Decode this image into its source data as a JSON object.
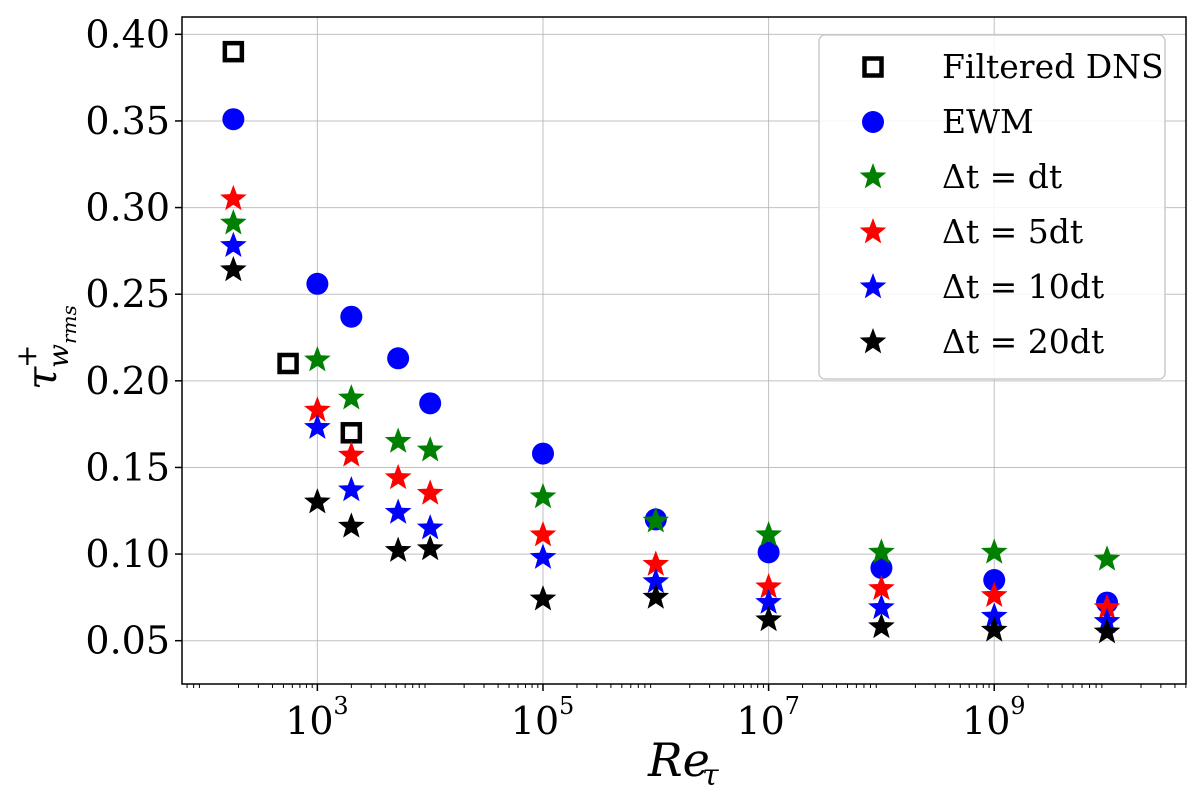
{
  "chart_data": {
    "type": "scatter",
    "title": "",
    "xlabel": "Re_τ",
    "xlabel_main": "Re",
    "xlabel_sub": "τ",
    "ylabel": "τ⁺_{w_rms}",
    "ylabel_main": "τ",
    "ylabel_sup": "+",
    "ylabel_sub": "w",
    "ylabel_subsub": "rms",
    "xscale": "log",
    "xlim_log10": [
      1.8,
      10.7
    ],
    "ylim": [
      0.025,
      0.41
    ],
    "grid": true,
    "legend_position": "top-right",
    "x_ticks": [
      {
        "exp": 3,
        "base": "10",
        "sup": "3"
      },
      {
        "exp": 5,
        "base": "10",
        "sup": "5"
      },
      {
        "exp": 7,
        "base": "10",
        "sup": "7"
      },
      {
        "exp": 9,
        "base": "10",
        "sup": "9"
      }
    ],
    "y_ticks": [
      {
        "value": 0.05,
        "label": "0.05"
      },
      {
        "value": 0.1,
        "label": "0.10"
      },
      {
        "value": 0.15,
        "label": "0.15"
      },
      {
        "value": 0.2,
        "label": "0.20"
      },
      {
        "value": 0.25,
        "label": "0.25"
      },
      {
        "value": 0.3,
        "label": "0.30"
      },
      {
        "value": 0.35,
        "label": "0.35"
      },
      {
        "value": 0.4,
        "label": "0.40"
      }
    ],
    "series": [
      {
        "name": "Filtered DNS",
        "legend_label": "Filtered DNS",
        "marker": "square",
        "color": "#000000",
        "x": [
          180,
          550,
          2000
        ],
        "y": [
          0.39,
          0.21,
          0.17
        ]
      },
      {
        "name": "EWM",
        "legend_label": "EWM",
        "marker": "circle",
        "color": "#0000ff",
        "x": [
          180,
          1000,
          2000,
          5200,
          10000,
          100000,
          1000000,
          10000000,
          100000000,
          1000000000,
          10000000000
        ],
        "y": [
          0.351,
          0.256,
          0.237,
          0.213,
          0.187,
          0.158,
          0.12,
          0.101,
          0.092,
          0.085,
          0.072
        ]
      },
      {
        "name": "Δt = dt",
        "legend_label": "Δt = dt",
        "marker": "star",
        "color": "#008000",
        "x": [
          180,
          1000,
          2000,
          5200,
          10000,
          100000,
          1000000,
          10000000,
          100000000,
          1000000000,
          10000000000
        ],
        "y": [
          0.291,
          0.212,
          0.19,
          0.165,
          0.16,
          0.133,
          0.119,
          0.111,
          0.101,
          0.101,
          0.097
        ]
      },
      {
        "name": "Δt = 5dt",
        "legend_label": "Δt = 5dt",
        "marker": "star",
        "color": "#ff0000",
        "x": [
          180,
          1000,
          2000,
          5200,
          10000,
          100000,
          1000000,
          10000000,
          100000000,
          1000000000,
          10000000000
        ],
        "y": [
          0.305,
          0.183,
          0.157,
          0.144,
          0.135,
          0.111,
          0.094,
          0.081,
          0.08,
          0.076,
          0.069
        ]
      },
      {
        "name": "Δt = 10dt",
        "legend_label": "Δt = 10dt",
        "marker": "star",
        "color": "#0000ff",
        "x": [
          180,
          1000,
          2000,
          5200,
          10000,
          100000,
          1000000,
          10000000,
          100000000,
          1000000000,
          10000000000
        ],
        "y": [
          0.278,
          0.173,
          0.137,
          0.124,
          0.115,
          0.098,
          0.084,
          0.072,
          0.069,
          0.064,
          0.061
        ]
      },
      {
        "name": "Δt = 20dt",
        "legend_label": "Δt = 20dt",
        "marker": "star",
        "color": "#000000",
        "x": [
          180,
          1000,
          2000,
          5200,
          10000,
          100000,
          1000000,
          10000000,
          100000000,
          1000000000,
          10000000000
        ],
        "y": [
          0.264,
          0.13,
          0.116,
          0.102,
          0.103,
          0.074,
          0.075,
          0.062,
          0.058,
          0.056,
          0.055
        ]
      }
    ]
  }
}
